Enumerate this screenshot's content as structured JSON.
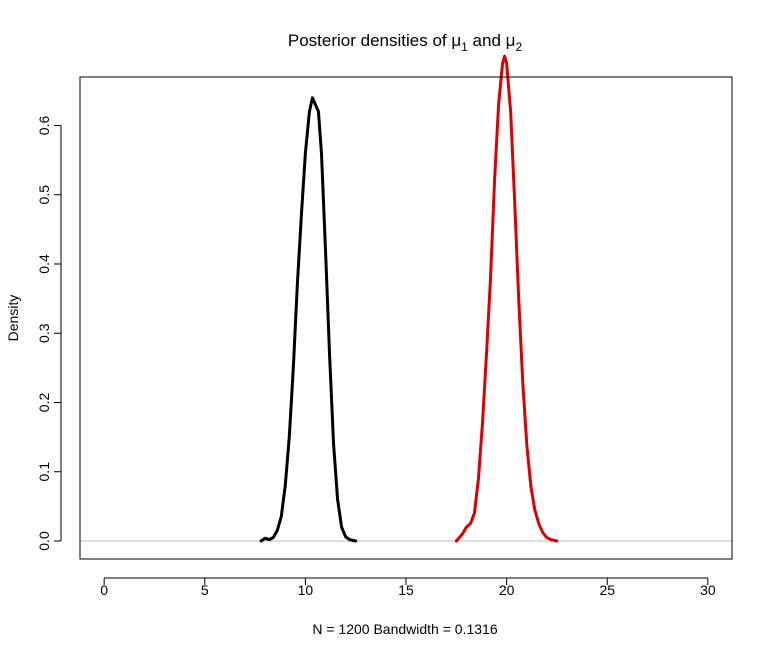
{
  "chart_data": {
    "type": "line",
    "title": {
      "prefix": "Posterior densities of ",
      "sym1": "μ",
      "sub1": "1",
      "mid": " and ",
      "sym2": "μ",
      "sub2": "2"
    },
    "xlabel": "N = 1200   Bandwidth = 0.1316",
    "ylabel": "Density",
    "xlim": [
      -1.2,
      31.2
    ],
    "ylim": [
      -0.026,
      0.67
    ],
    "x_ticks": [
      0,
      5,
      10,
      15,
      20,
      25,
      30
    ],
    "y_ticks": [
      0.0,
      0.1,
      0.2,
      0.3,
      0.4,
      0.5,
      0.6
    ],
    "x_tick_labels": [
      "0",
      "5",
      "10",
      "15",
      "20",
      "25",
      "30"
    ],
    "y_tick_labels": [
      "0.0",
      "0.1",
      "0.2",
      "0.3",
      "0.4",
      "0.5",
      "0.6"
    ],
    "baseline": 0,
    "grid": false,
    "legend": "none",
    "series": [
      {
        "color": "#000000",
        "x": [
          7.8,
          8.0,
          8.2,
          8.4,
          8.6,
          8.8,
          9.0,
          9.2,
          9.4,
          9.6,
          9.8,
          10.0,
          10.2,
          10.35,
          10.5,
          10.65,
          10.8,
          11.0,
          11.2,
          11.4,
          11.6,
          11.8,
          12.0,
          12.2,
          12.5
        ],
        "y": [
          0.0,
          0.004,
          0.002,
          0.005,
          0.015,
          0.035,
          0.08,
          0.15,
          0.25,
          0.37,
          0.47,
          0.56,
          0.62,
          0.64,
          0.63,
          0.62,
          0.56,
          0.42,
          0.27,
          0.14,
          0.06,
          0.02,
          0.006,
          0.002,
          0.0
        ]
      },
      {
        "color": "#dd0000",
        "x": [
          17.5,
          17.8,
          18.0,
          18.2,
          18.4,
          18.6,
          18.8,
          19.0,
          19.2,
          19.4,
          19.6,
          19.8,
          19.9,
          20.0,
          20.2,
          20.4,
          20.6,
          20.8,
          21.0,
          21.2,
          21.4,
          21.6,
          21.8,
          22.0,
          22.2,
          22.5
        ],
        "y": [
          0.0,
          0.01,
          0.02,
          0.025,
          0.04,
          0.09,
          0.17,
          0.27,
          0.38,
          0.52,
          0.63,
          0.69,
          0.7,
          0.69,
          0.62,
          0.49,
          0.35,
          0.23,
          0.14,
          0.08,
          0.045,
          0.025,
          0.012,
          0.005,
          0.002,
          0.0
        ]
      }
    ]
  }
}
